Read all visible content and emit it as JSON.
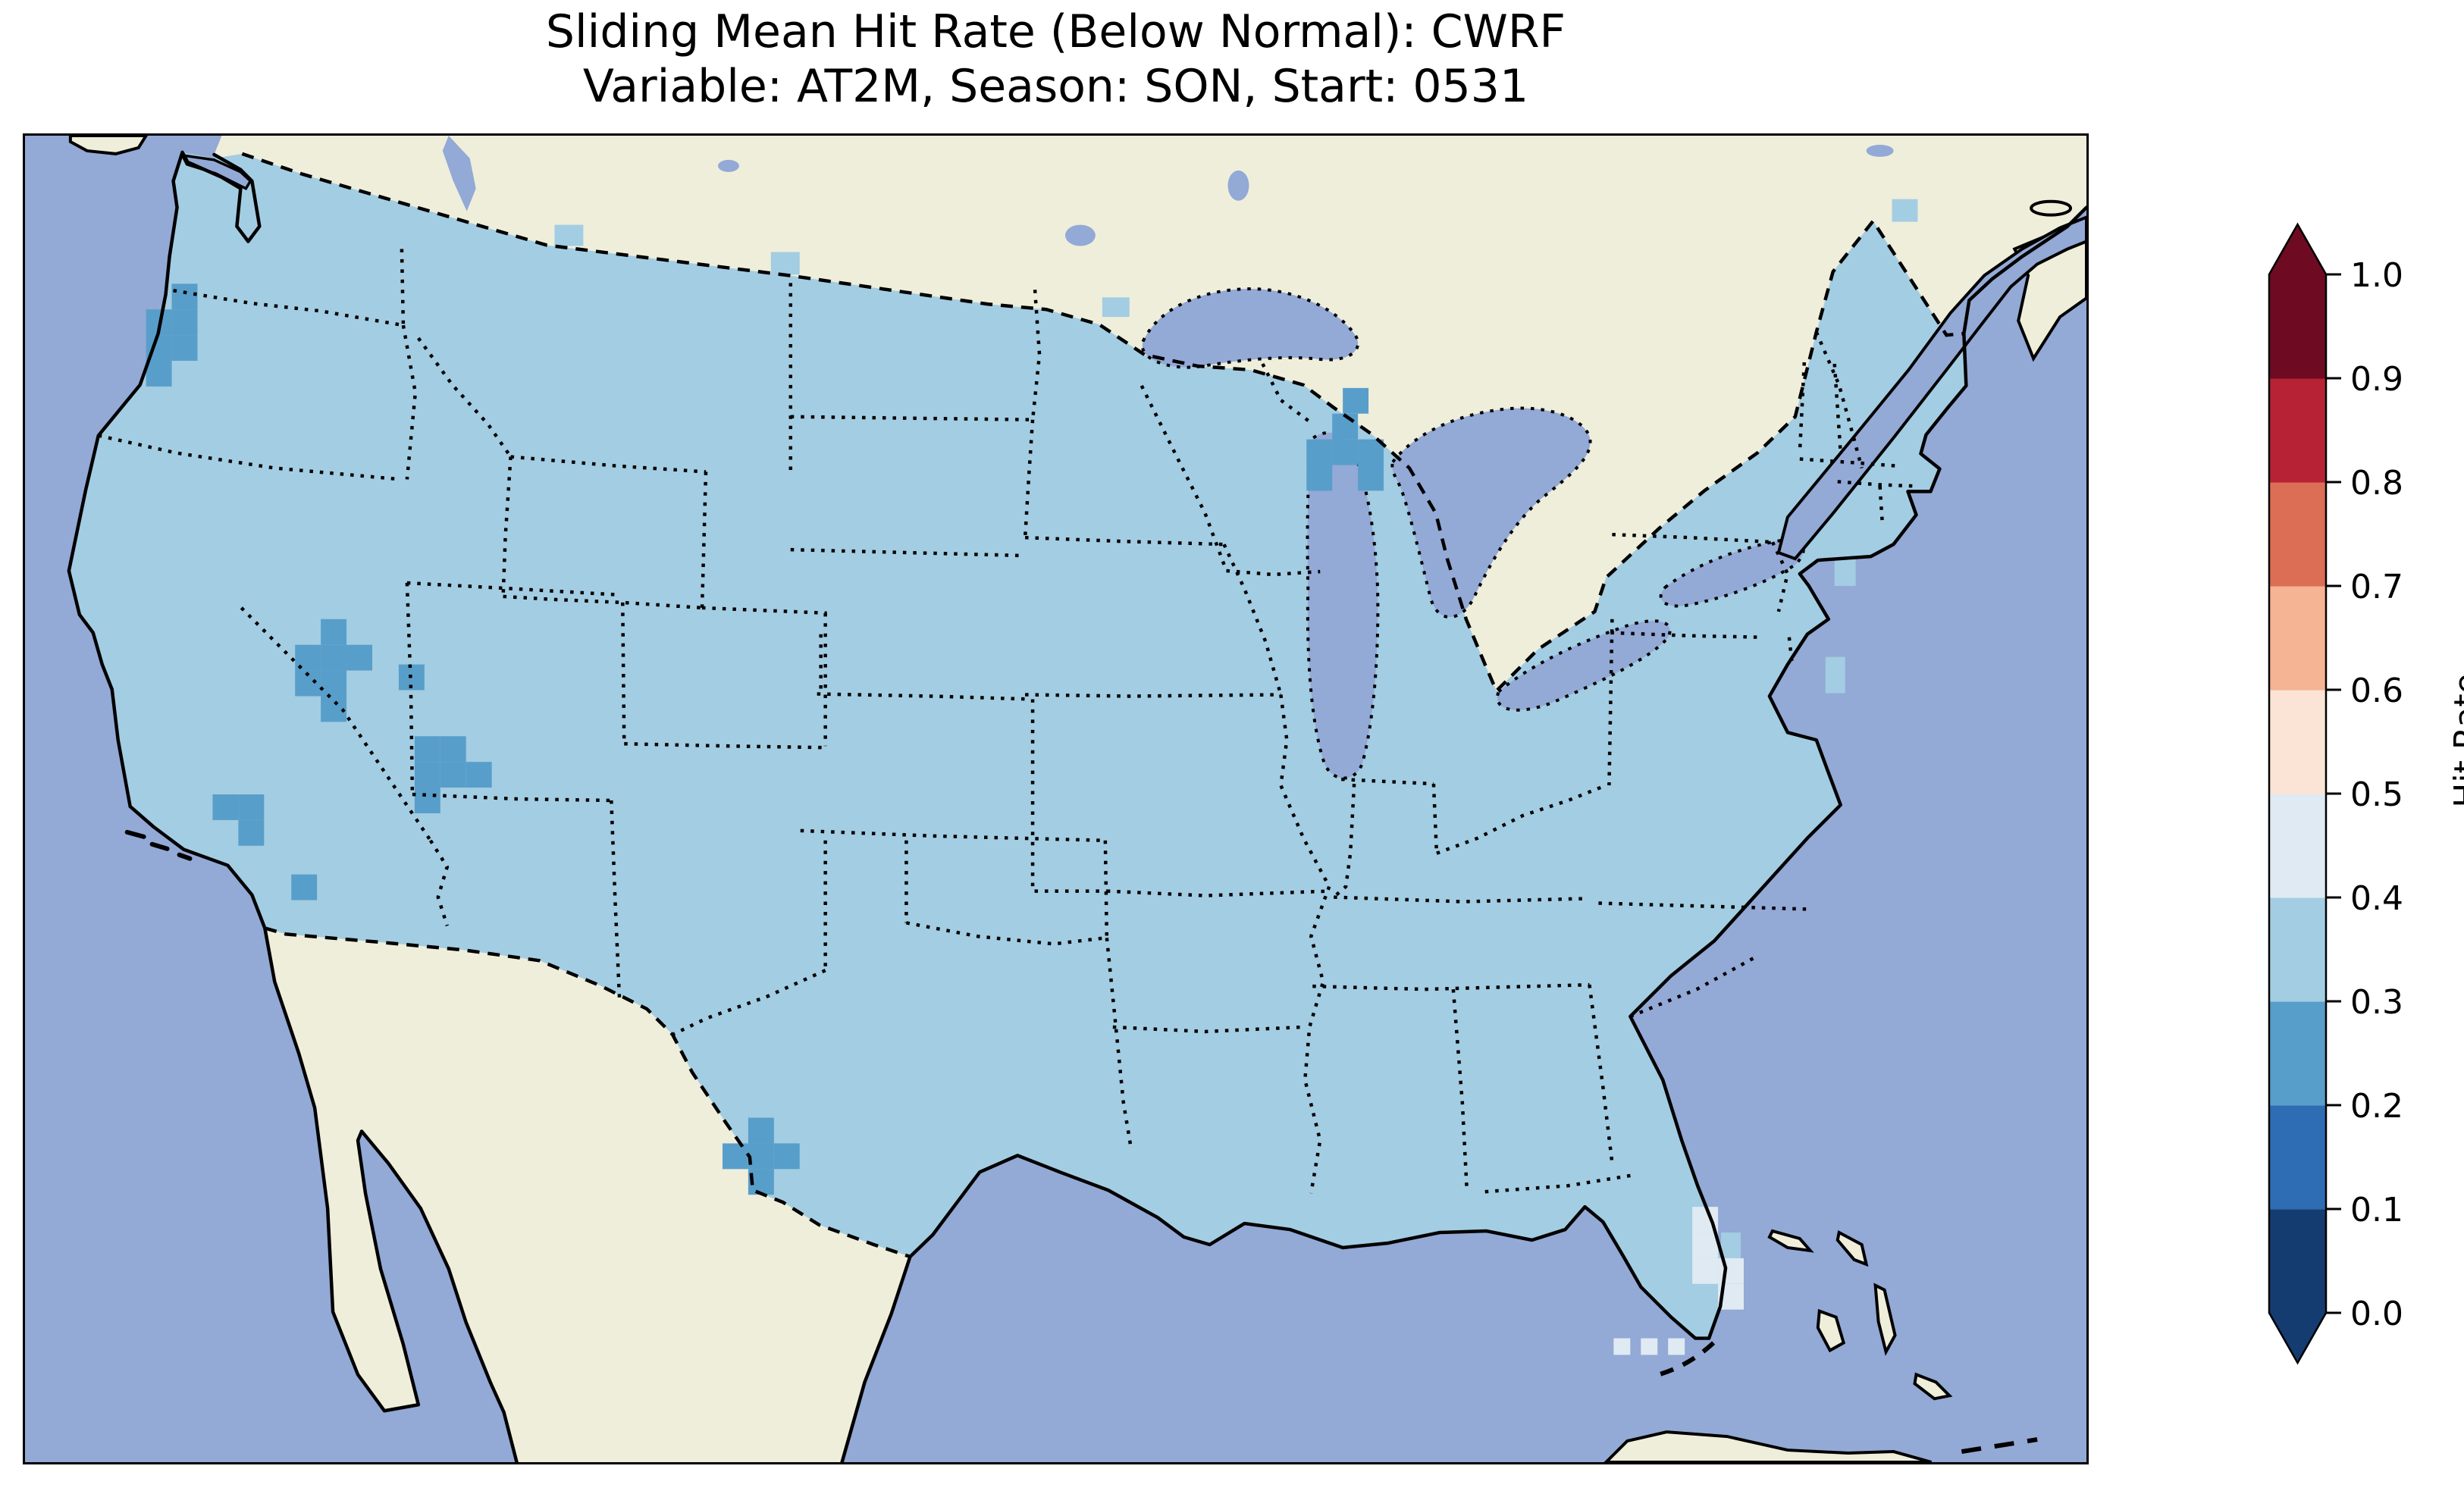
{
  "figure": {
    "title_line1": "Sliding Mean Hit Rate (Below Normal): CWRF",
    "title_line2": "Variable: AT2M, Season: SON, Start: 0531"
  },
  "chart_data": {
    "type": "heatmap",
    "title": "Sliding Mean Hit Rate (Below Normal): CWRF",
    "subtitle": "Variable: AT2M, Season: SON, Start: 0531",
    "model": "CWRF",
    "variable": "AT2M",
    "season": "SON",
    "start": "0531",
    "metric": "Sliding Mean Hit Rate",
    "category": "Below Normal",
    "region": "Contiguous United States",
    "legend_position": "right",
    "grid": false,
    "colorbar": {
      "label": "Hit Rate",
      "range": [
        0.0,
        1.0
      ],
      "ticks": [
        0.0,
        0.1,
        0.2,
        0.3,
        0.4,
        0.5,
        0.6,
        0.7,
        0.8,
        0.9,
        1.0
      ],
      "extend": "both",
      "bin_colors": [
        "#143c70",
        "#2e6db4",
        "#589eca",
        "#a3cde2",
        "#dfeaf2",
        "#fbe4d5",
        "#f5b494",
        "#dc6e56",
        "#b72335",
        "#6e0b22"
      ]
    },
    "basemap_colors": {
      "ocean": "#93a9d6",
      "lakes": "#93a9d6",
      "land": "#efeedb",
      "coastline": "#000000",
      "state_border_style": "dotted",
      "country_border_style": "dashed"
    },
    "dominant_value_bin": [
      0.3,
      0.4
    ],
    "anomalies": [
      {
        "area": "Oregon coast",
        "bin": [
          0.2,
          0.3
        ]
      },
      {
        "area": "western Nevada",
        "bin": [
          0.2,
          0.3
        ]
      },
      {
        "area": "Nevada-Utah border cell",
        "bin": [
          0.2,
          0.3
        ]
      },
      {
        "area": "southern Utah / Arizona border",
        "bin": [
          0.2,
          0.3
        ]
      },
      {
        "area": "southern Nevada / California border",
        "bin": [
          0.2,
          0.3
        ]
      },
      {
        "area": "northern Lake Michigan / Michigan",
        "bin": [
          0.2,
          0.3
        ]
      },
      {
        "area": "Rio Grande, southwest Texas",
        "bin": [
          0.2,
          0.3
        ]
      },
      {
        "area": "southeast Florida coast",
        "bin": [
          0.4,
          0.5
        ]
      },
      {
        "area": "offshore Florida Keys cells",
        "bin": [
          0.4,
          0.5
        ]
      }
    ],
    "patch_groups": [
      {
        "name": "oregon-coast",
        "bin": 2,
        "cell": 34,
        "origin": [
          160,
          196
        ],
        "cells": [
          [
            1,
            0
          ],
          [
            0,
            1
          ],
          [
            1,
            1
          ],
          [
            0,
            2
          ],
          [
            1,
            2
          ],
          [
            0,
            3
          ]
        ]
      },
      {
        "name": "western-nevada",
        "bin": 2,
        "cell": 34,
        "origin": [
          357,
          640
        ],
        "cells": [
          [
            1,
            0
          ],
          [
            0,
            1
          ],
          [
            1,
            1
          ],
          [
            2,
            1
          ],
          [
            0,
            2
          ],
          [
            1,
            2
          ],
          [
            1,
            3
          ]
        ]
      },
      {
        "name": "nevada-utah-border",
        "bin": 2,
        "cell": 34,
        "origin": [
          494,
          700
        ],
        "cells": [
          [
            0,
            0
          ]
        ]
      },
      {
        "name": "southern-utah",
        "bin": 2,
        "cell": 34,
        "origin": [
          515,
          795
        ],
        "cells": [
          [
            0,
            0
          ],
          [
            1,
            0
          ],
          [
            0,
            1
          ],
          [
            1,
            1
          ],
          [
            2,
            1
          ],
          [
            0,
            2
          ]
        ]
      },
      {
        "name": "southern-nevada",
        "bin": 2,
        "cell": 34,
        "origin": [
          248,
          872
        ],
        "cells": [
          [
            0,
            0
          ],
          [
            1,
            0
          ],
          [
            1,
            1
          ]
        ]
      },
      {
        "name": "mojave-cell",
        "bin": 2,
        "cell": 34,
        "origin": [
          352,
          978
        ],
        "cells": [
          [
            0,
            0
          ]
        ]
      },
      {
        "name": "northern-michigan",
        "bin": 2,
        "cell": 34,
        "origin": [
          1694,
          368
        ],
        "cells": [
          [
            1,
            0
          ],
          [
            0,
            1
          ],
          [
            1,
            1
          ],
          [
            2,
            1
          ],
          [
            0,
            2
          ],
          [
            2,
            2
          ]
        ]
      },
      {
        "name": "michigan-small-cell",
        "bin": 2,
        "cell": 34,
        "origin": [
          1742,
          334
        ],
        "cells": [
          [
            0,
            0
          ]
        ]
      },
      {
        "name": "rio-grande-texas",
        "bin": 2,
        "cell": 34,
        "origin": [
          922,
          1300
        ],
        "cells": [
          [
            1,
            0
          ],
          [
            0,
            1
          ],
          [
            1,
            1
          ],
          [
            2,
            1
          ],
          [
            1,
            2
          ]
        ]
      },
      {
        "name": "southeast-florida",
        "bin": 4,
        "cell": 34,
        "origin": [
          2204,
          1418
        ],
        "cells": [
          [
            0,
            0
          ],
          [
            0,
            1
          ],
          [
            0,
            2
          ],
          [
            1,
            2
          ],
          [
            1,
            3
          ]
        ]
      }
    ],
    "extra_rects": [
      {
        "name": "florida-keys-offshore",
        "bin": 4,
        "rects": [
          [
            2100,
            1592,
            22,
            22
          ],
          [
            2136,
            1592,
            22,
            22
          ],
          [
            2172,
            1592,
            22,
            22
          ]
        ]
      },
      {
        "name": "field-edge-overhang",
        "bin": 3,
        "rects": [
          [
            700,
            118,
            38,
            28
          ],
          [
            986,
            154,
            38,
            30
          ],
          [
            1424,
            214,
            36,
            26
          ],
          [
            2468,
            84,
            34,
            30
          ],
          [
            2392,
            560,
            28,
            36
          ],
          [
            2380,
            690,
            26,
            48
          ],
          [
            2242,
            1452,
            26,
            46
          ]
        ]
      }
    ]
  }
}
